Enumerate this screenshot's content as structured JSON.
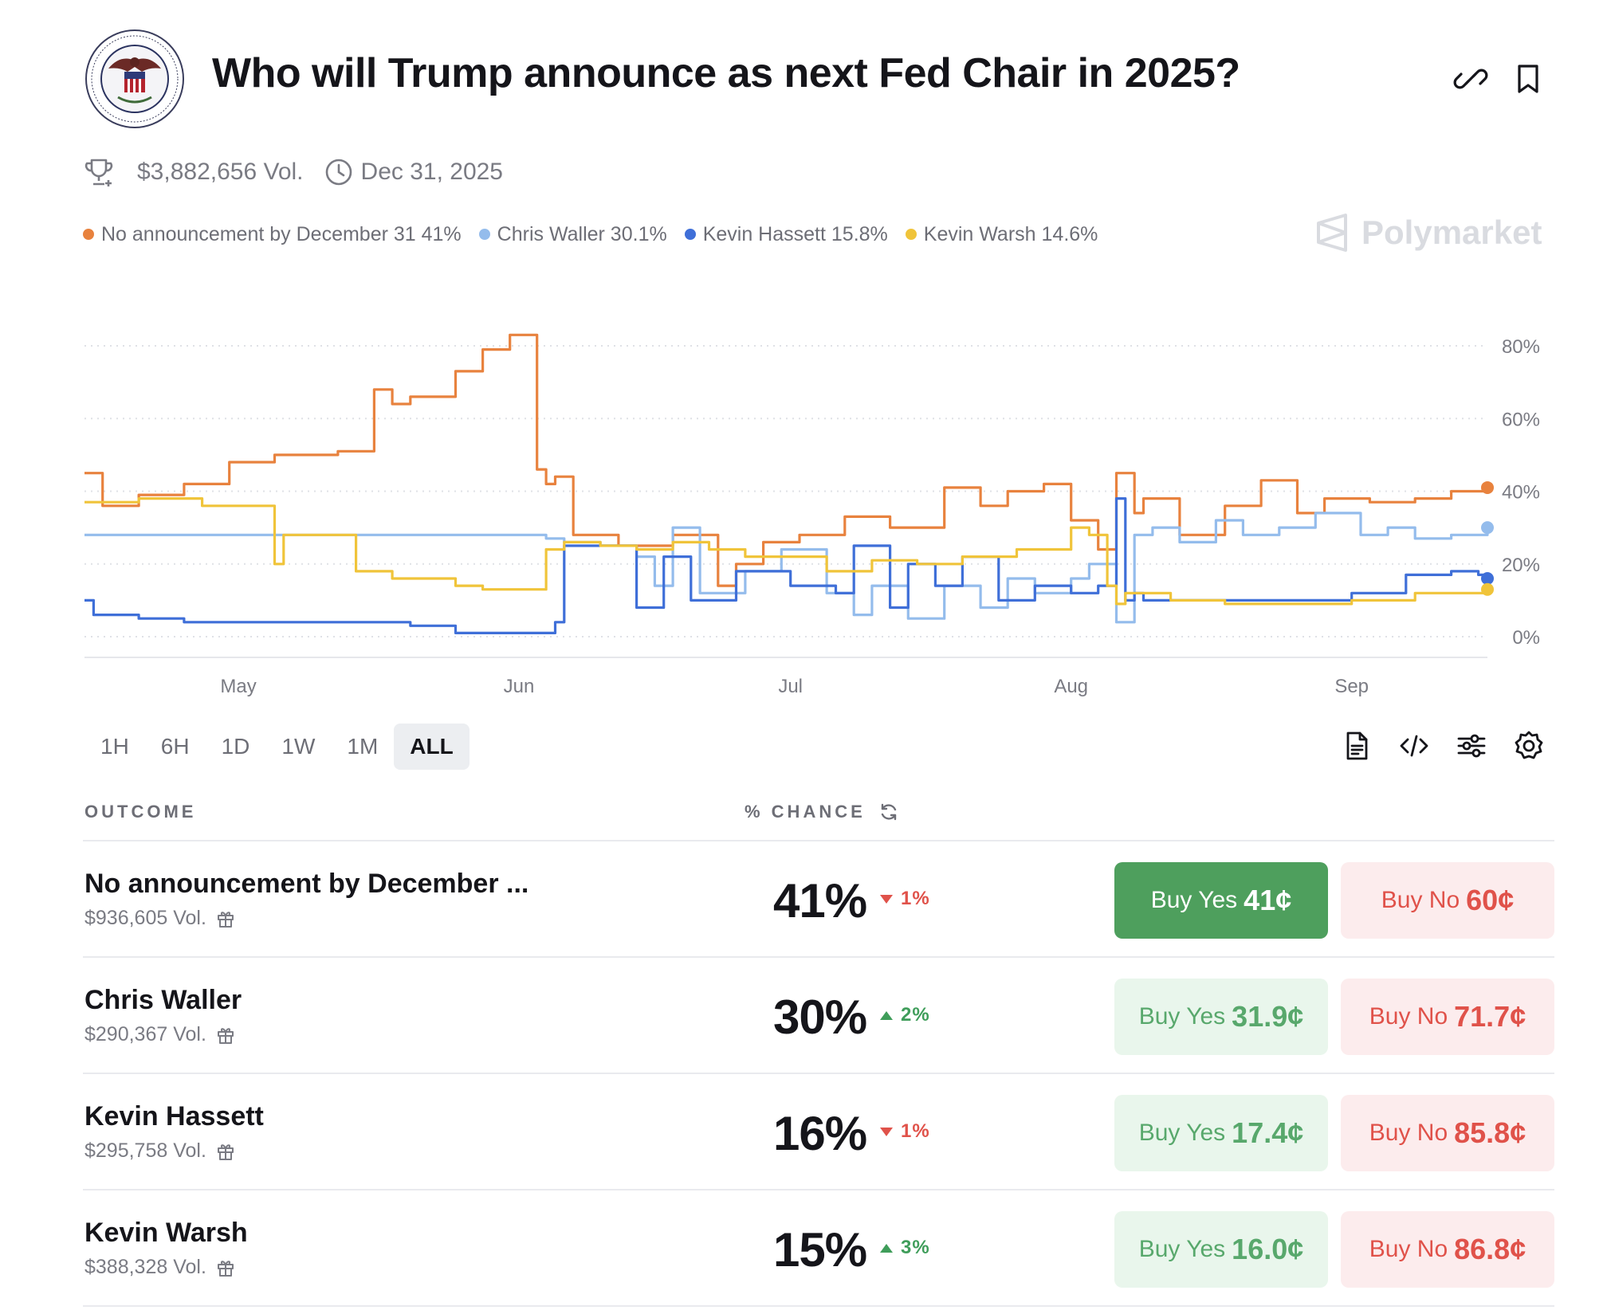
{
  "market": {
    "title": "Who will Trump announce as next Fed Chair in 2025?",
    "volume": "$3,882,656 Vol.",
    "end_date": "Dec 31, 2025",
    "brand": "Polymarket"
  },
  "icons": {
    "seal": "federal-reserve-seal",
    "link": "link-icon",
    "bookmark": "bookmark-icon",
    "trophy": "trophy-icon",
    "clock": "clock-icon",
    "document": "document-icon",
    "embed": "code-icon",
    "filters": "sliders-icon",
    "settings": "gear-icon",
    "refresh": "refresh-icon",
    "gift": "gift-icon"
  },
  "legend": [
    {
      "label": "No announcement by December 31 41%",
      "color": "#e8823e"
    },
    {
      "label": "Chris Waller 30.1%",
      "color": "#94bcec"
    },
    {
      "label": "Kevin Hassett 15.8%",
      "color": "#3f6fd8"
    },
    {
      "label": "Kevin Warsh 14.6%",
      "color": "#f0c43a"
    }
  ],
  "chart_data": {
    "type": "line",
    "x_labels": [
      "May",
      "Jun",
      "Jul",
      "Aug",
      "Sep"
    ],
    "y_ticks": [
      "80%",
      "60%",
      "40%",
      "20%",
      "0%"
    ],
    "ylim": [
      0,
      80
    ],
    "grid": true,
    "series": [
      {
        "name": "No announcement by December 31",
        "color": "#e8823e",
        "x": [
          "2025-04-14",
          "2025-04-16",
          "2025-04-20",
          "2025-04-25",
          "2025-04-30",
          "2025-05-05",
          "2025-05-12",
          "2025-05-16",
          "2025-05-18",
          "2025-05-20",
          "2025-05-25",
          "2025-05-28",
          "2025-05-31",
          "2025-06-01",
          "2025-06-02",
          "2025-06-03",
          "2025-06-04",
          "2025-06-05",
          "2025-06-07",
          "2025-06-12",
          "2025-06-18",
          "2025-06-23",
          "2025-06-25",
          "2025-06-28",
          "2025-07-02",
          "2025-07-07",
          "2025-07-12",
          "2025-07-18",
          "2025-07-22",
          "2025-07-25",
          "2025-07-29",
          "2025-08-01",
          "2025-08-04",
          "2025-08-06",
          "2025-08-08",
          "2025-08-09",
          "2025-08-13",
          "2025-08-18",
          "2025-08-22",
          "2025-08-26",
          "2025-08-29",
          "2025-09-03",
          "2025-09-08",
          "2025-09-12",
          "2025-09-16"
        ],
        "values": [
          45,
          36,
          39,
          42,
          48,
          50,
          51,
          68,
          64,
          66,
          73,
          79,
          83,
          83,
          83,
          46,
          42,
          44,
          28,
          25,
          28,
          14,
          20,
          26,
          28,
          33,
          30,
          41,
          36,
          40,
          42,
          32,
          24,
          45,
          34,
          38,
          28,
          36,
          43,
          34,
          38,
          37,
          38,
          40,
          41
        ]
      },
      {
        "name": "Chris Waller",
        "color": "#94bcec",
        "x": [
          "2025-04-14",
          "2025-06-02",
          "2025-06-04",
          "2025-06-06",
          "2025-06-10",
          "2025-06-14",
          "2025-06-16",
          "2025-06-18",
          "2025-06-21",
          "2025-06-26",
          "2025-06-30",
          "2025-07-05",
          "2025-07-08",
          "2025-07-10",
          "2025-07-14",
          "2025-07-18",
          "2025-07-22",
          "2025-07-25",
          "2025-07-28",
          "2025-08-01",
          "2025-08-03",
          "2025-08-06",
          "2025-08-08",
          "2025-08-10",
          "2025-08-13",
          "2025-08-17",
          "2025-08-20",
          "2025-08-24",
          "2025-08-28",
          "2025-09-02",
          "2025-09-05",
          "2025-09-08",
          "2025-09-12",
          "2025-09-16"
        ],
        "values": [
          28,
          28,
          27,
          26,
          25,
          22,
          14,
          30,
          12,
          18,
          24,
          12,
          6,
          14,
          5,
          14,
          8,
          16,
          12,
          16,
          20,
          4,
          28,
          30,
          26,
          32,
          28,
          30,
          34,
          28,
          30,
          27,
          28,
          30
        ]
      },
      {
        "name": "Kevin Hassett",
        "color": "#3f6fd8",
        "x": [
          "2025-04-14",
          "2025-04-15",
          "2025-04-20",
          "2025-04-25",
          "2025-05-05",
          "2025-05-12",
          "2025-05-20",
          "2025-05-25",
          "2025-06-01",
          "2025-06-02",
          "2025-06-04",
          "2025-06-05",
          "2025-06-06",
          "2025-06-13",
          "2025-06-14",
          "2025-06-17",
          "2025-06-20",
          "2025-06-25",
          "2025-07-01",
          "2025-07-06",
          "2025-07-08",
          "2025-07-12",
          "2025-07-14",
          "2025-07-17",
          "2025-07-20",
          "2025-07-24",
          "2025-07-28",
          "2025-08-01",
          "2025-08-04",
          "2025-08-06",
          "2025-08-07",
          "2025-08-08",
          "2025-08-09",
          "2025-08-12",
          "2025-08-18",
          "2025-08-25",
          "2025-09-01",
          "2025-09-06",
          "2025-09-07",
          "2025-09-12",
          "2025-09-15",
          "2025-09-16"
        ],
        "values": [
          10,
          6,
          5,
          4,
          4,
          4,
          3,
          1,
          1,
          1,
          1,
          4,
          25,
          25,
          8,
          22,
          10,
          18,
          14,
          12,
          25,
          8,
          20,
          14,
          22,
          10,
          14,
          12,
          14,
          38,
          10,
          12,
          10,
          10,
          10,
          10,
          12,
          12,
          17,
          18,
          17,
          16
        ]
      },
      {
        "name": "Kevin Warsh",
        "color": "#f0c43a",
        "x": [
          "2025-04-14",
          "2025-04-20",
          "2025-04-27",
          "2025-05-04",
          "2025-05-05",
          "2025-05-06",
          "2025-05-12",
          "2025-05-14",
          "2025-05-18",
          "2025-05-23",
          "2025-05-25",
          "2025-05-28",
          "2025-06-01",
          "2025-06-04",
          "2025-06-06",
          "2025-06-10",
          "2025-06-14",
          "2025-06-18",
          "2025-06-22",
          "2025-06-26",
          "2025-06-30",
          "2025-07-05",
          "2025-07-10",
          "2025-07-15",
          "2025-07-20",
          "2025-07-26",
          "2025-08-01",
          "2025-08-03",
          "2025-08-05",
          "2025-08-06",
          "2025-08-07",
          "2025-08-08",
          "2025-08-12",
          "2025-08-18",
          "2025-08-25",
          "2025-09-01",
          "2025-09-08",
          "2025-09-16"
        ],
        "values": [
          37,
          38,
          36,
          36,
          20,
          28,
          28,
          18,
          16,
          16,
          14,
          13,
          13,
          24,
          26,
          25,
          24,
          26,
          24,
          22,
          22,
          18,
          21,
          20,
          22,
          24,
          30,
          28,
          14,
          9,
          12,
          12,
          10,
          9,
          9,
          10,
          12,
          13
        ]
      }
    ]
  },
  "tabs": [
    "1H",
    "6H",
    "1D",
    "1W",
    "1M",
    "ALL"
  ],
  "table": {
    "col_outcome": "OUTCOME",
    "col_chance": "% CHANCE",
    "rows": [
      {
        "name": "No announcement by December ...",
        "volume": "$936,605 Vol.",
        "chance": "41%",
        "change": "1%",
        "dir": "down",
        "yes_label": "Buy Yes",
        "yes_price": "41¢",
        "no_label": "Buy No",
        "no_price": "60¢"
      },
      {
        "name": "Chris Waller",
        "volume": "$290,367 Vol.",
        "chance": "30%",
        "change": "2%",
        "dir": "up",
        "yes_label": "Buy Yes",
        "yes_price": "31.9¢",
        "no_label": "Buy No",
        "no_price": "71.7¢"
      },
      {
        "name": "Kevin Hassett",
        "volume": "$295,758 Vol.",
        "chance": "16%",
        "change": "1%",
        "dir": "down",
        "yes_label": "Buy Yes",
        "yes_price": "17.4¢",
        "no_label": "Buy No",
        "no_price": "85.8¢"
      },
      {
        "name": "Kevin Warsh",
        "volume": "$388,328 Vol.",
        "chance": "15%",
        "change": "3%",
        "dir": "up",
        "yes_label": "Buy Yes",
        "yes_price": "16.0¢",
        "no_label": "Buy No",
        "no_price": "86.8¢"
      }
    ]
  }
}
